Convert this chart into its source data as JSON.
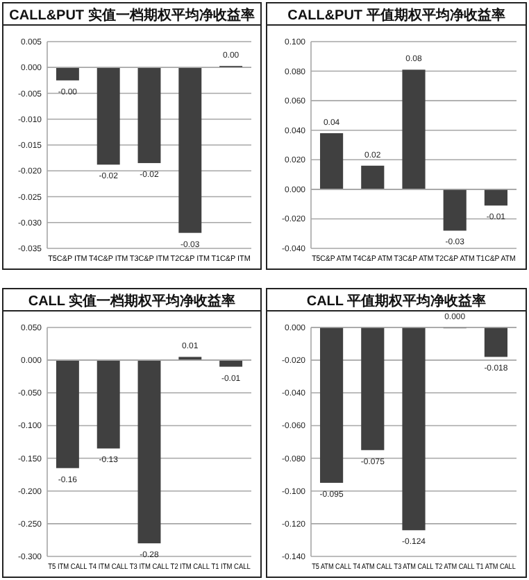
{
  "chart_data": [
    {
      "type": "bar",
      "title": "CALL&PUT 实值一档期权平均净收益率",
      "categories": [
        "T5C&P ITM",
        "T4C&P ITM",
        "T3C&P ITM",
        "T2C&P ITM",
        "T1C&P ITM"
      ],
      "values": [
        -0.0025,
        -0.0188,
        -0.0185,
        -0.032,
        0.0003
      ],
      "value_labels": [
        "-0.00",
        "-0.02",
        "-0.02",
        "-0.03",
        "0.00"
      ],
      "color": "#404040",
      "ylim": [
        -0.035,
        0.005
      ],
      "yticks": [
        {
          "value": 0.005,
          "label": "0.005"
        },
        {
          "value": 0,
          "label": "0.000"
        },
        {
          "value": -0.005,
          "label": "-0.005"
        },
        {
          "value": -0.01,
          "label": "-0.010"
        },
        {
          "value": -0.015,
          "label": "-0.015"
        },
        {
          "value": -0.02,
          "label": "-0.020"
        },
        {
          "value": -0.025,
          "label": "-0.025"
        },
        {
          "value": -0.03,
          "label": "-0.030"
        },
        {
          "value": -0.035,
          "label": "-0.035"
        }
      ],
      "grid": "y"
    },
    {
      "type": "bar",
      "title": "CALL&PUT 平值期权平均净收益率",
      "categories": [
        "T5C&P ATM",
        "T4C&P ATM",
        "T3C&P ATM",
        "T2C&P ATM",
        "T1C&P ATM"
      ],
      "values": [
        0.038,
        0.016,
        0.081,
        -0.028,
        -0.011
      ],
      "value_labels": [
        "0.04",
        "0.02",
        "0.08",
        "-0.03",
        "-0.01"
      ],
      "color": "#404040",
      "ylim": [
        -0.04,
        0.1
      ],
      "yticks": [
        {
          "value": 0.1,
          "label": "0.100"
        },
        {
          "value": 0.08,
          "label": "0.080"
        },
        {
          "value": 0.06,
          "label": "0.060"
        },
        {
          "value": 0.04,
          "label": "0.040"
        },
        {
          "value": 0.02,
          "label": "0.020"
        },
        {
          "value": 0,
          "label": "0.000"
        },
        {
          "value": -0.02,
          "label": "-0.020"
        },
        {
          "value": -0.04,
          "label": "-0.040"
        }
      ],
      "grid": "y"
    },
    {
      "type": "bar",
      "title": "CALL 实值一档期权平均净收益率",
      "categories": [
        "T5 ITM CALL",
        "T4 ITM CALL",
        "T3 ITM CALL",
        "T2 ITM CALL",
        "T1 ITM CALL"
      ],
      "values": [
        -0.165,
        -0.135,
        -0.28,
        0.005,
        -0.01
      ],
      "value_labels": [
        "-0.16",
        "-0.13",
        "-0.28",
        "0.01",
        "-0.01"
      ],
      "color": "#404040",
      "ylim": [
        -0.3,
        0.05
      ],
      "yticks": [
        {
          "value": 0.05,
          "label": "0.050"
        },
        {
          "value": 0,
          "label": "0.000"
        },
        {
          "value": -0.05,
          "label": "-0.050"
        },
        {
          "value": -0.1,
          "label": "-0.100"
        },
        {
          "value": -0.15,
          "label": "-0.150"
        },
        {
          "value": -0.2,
          "label": "-0.200"
        },
        {
          "value": -0.25,
          "label": "-0.250"
        },
        {
          "value": -0.3,
          "label": "-0.300"
        }
      ],
      "grid": "y"
    },
    {
      "type": "bar",
      "title": "CALL 平值期权平均净收益率",
      "categories": [
        "T5 ATM CALL",
        "T4 ATM CALL",
        "T3 ATM CALL",
        "T2 ATM CALL",
        "T1 ATM CALL"
      ],
      "values": [
        -0.095,
        -0.075,
        -0.124,
        0,
        -0.018
      ],
      "value_labels": [
        "-0.095",
        "-0.075",
        "-0.124",
        "0.000",
        "-0.018"
      ],
      "color": "#404040",
      "ylim": [
        -0.14,
        0
      ],
      "yticks": [
        {
          "value": 0,
          "label": "0.000"
        },
        {
          "value": -0.02,
          "label": "-0.020"
        },
        {
          "value": -0.04,
          "label": "-0.040"
        },
        {
          "value": -0.06,
          "label": "-0.060"
        },
        {
          "value": -0.08,
          "label": "-0.080"
        },
        {
          "value": -0.1,
          "label": "-0.100"
        },
        {
          "value": -0.12,
          "label": "-0.120"
        },
        {
          "value": -0.14,
          "label": "-0.140"
        }
      ],
      "grid": "y"
    }
  ]
}
